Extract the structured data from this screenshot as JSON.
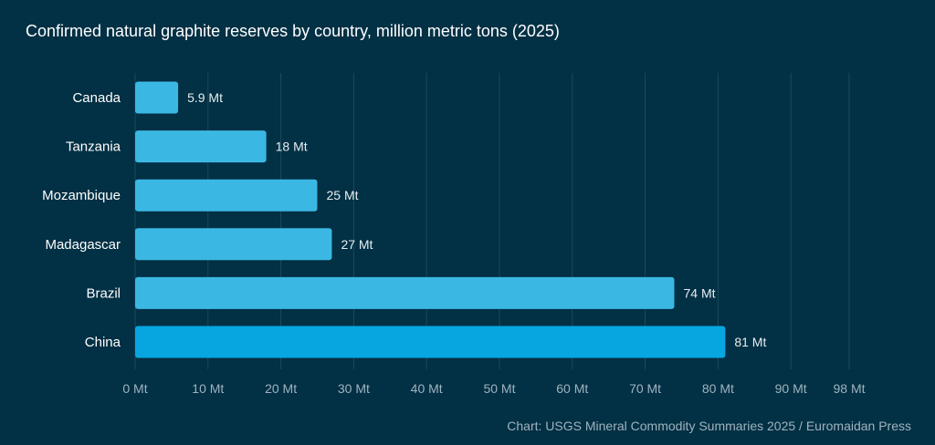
{
  "chart_data": {
    "type": "bar",
    "orientation": "horizontal",
    "title": "Confirmed natural graphite reserves by country, million metric tons (2025)",
    "categories": [
      "Canada",
      "Tanzania",
      "Mozambique",
      "Madagascar",
      "Brazil",
      "China"
    ],
    "values": [
      5.9,
      18,
      25,
      27,
      74,
      81
    ],
    "value_labels": [
      "5.9 Mt",
      "18 Mt",
      "25 Mt",
      "27 Mt",
      "74 Mt",
      "81 Mt"
    ],
    "xlim": [
      0,
      98
    ],
    "ticks": [
      0,
      10,
      20,
      30,
      40,
      50,
      60,
      70,
      80,
      90,
      98
    ],
    "tick_labels": [
      "0 Mt",
      "10 Mt",
      "20 Mt",
      "30 Mt",
      "40 Mt",
      "50 Mt",
      "60 Mt",
      "70 Mt",
      "80 Mt",
      "90 Mt",
      "98 Mt"
    ],
    "grid": "vertical",
    "colors": {
      "default": "#3ab8e3",
      "highlight": "#07a6e1",
      "background": "#023044"
    },
    "highlight_category": "China",
    "source": "Chart: USGS Mineral Commodity Summaries 2025 / Euromaidan Press"
  }
}
